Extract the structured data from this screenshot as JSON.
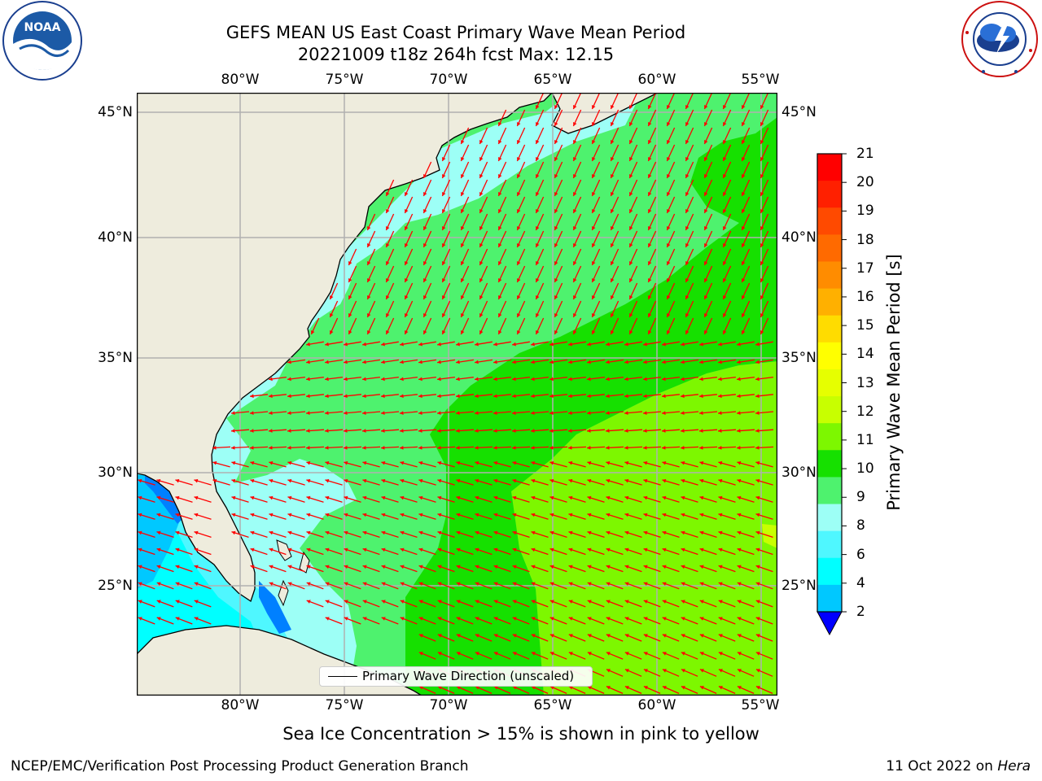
{
  "title_line1": "GEFS MEAN US East Coast Primary Wave Mean Period",
  "title_line2": "20221009 t18z 264h fcst   Max: 12.15",
  "map": {
    "lon_ticks": [
      "80°W",
      "75°W",
      "70°W",
      "65°W",
      "60°W",
      "55°W"
    ],
    "lat_ticks": [
      "45°N",
      "40°N",
      "35°N",
      "30°N",
      "25°N"
    ],
    "field": "Primary Wave Mean Period",
    "max_value": 12.15,
    "arrow_color": "#ff0000",
    "land_color": "#eeecdd",
    "grid_color": "#b0b0b0"
  },
  "legend": {
    "label": "Primary Wave Direction (unscaled)"
  },
  "colorbar": {
    "label": "Primary Wave Mean Period [s]",
    "tick_labels": [
      "21",
      "20",
      "19",
      "18",
      "17",
      "16",
      "15",
      "14",
      "13",
      "12",
      "11",
      "10",
      "9",
      "8",
      "6",
      "4",
      "2"
    ],
    "colors_top_to_bottom": [
      "#ff0000",
      "#ff2000",
      "#ff4a00",
      "#ff6a00",
      "#ff8c00",
      "#ffb000",
      "#ffdc00",
      "#ffff00",
      "#e6ff00",
      "#c8ff00",
      "#7df700",
      "#16e000",
      "#4ef26e",
      "#9dfff6",
      "#4ff7ff",
      "#00ffff",
      "#00c8ff",
      "#0080ff"
    ],
    "extend_color": "#0000ff"
  },
  "subtitle": "Sea Ice Concentration > 15% is shown in pink to yellow",
  "footer_left": "NCEP/EMC/Verification Post Processing Product Generation Branch",
  "footer_right_date": "11 Oct 2022 on ",
  "footer_right_host": "Hera",
  "logos": {
    "left": "NOAA",
    "right": "NATIONAL WEATHER SERVICE"
  }
}
